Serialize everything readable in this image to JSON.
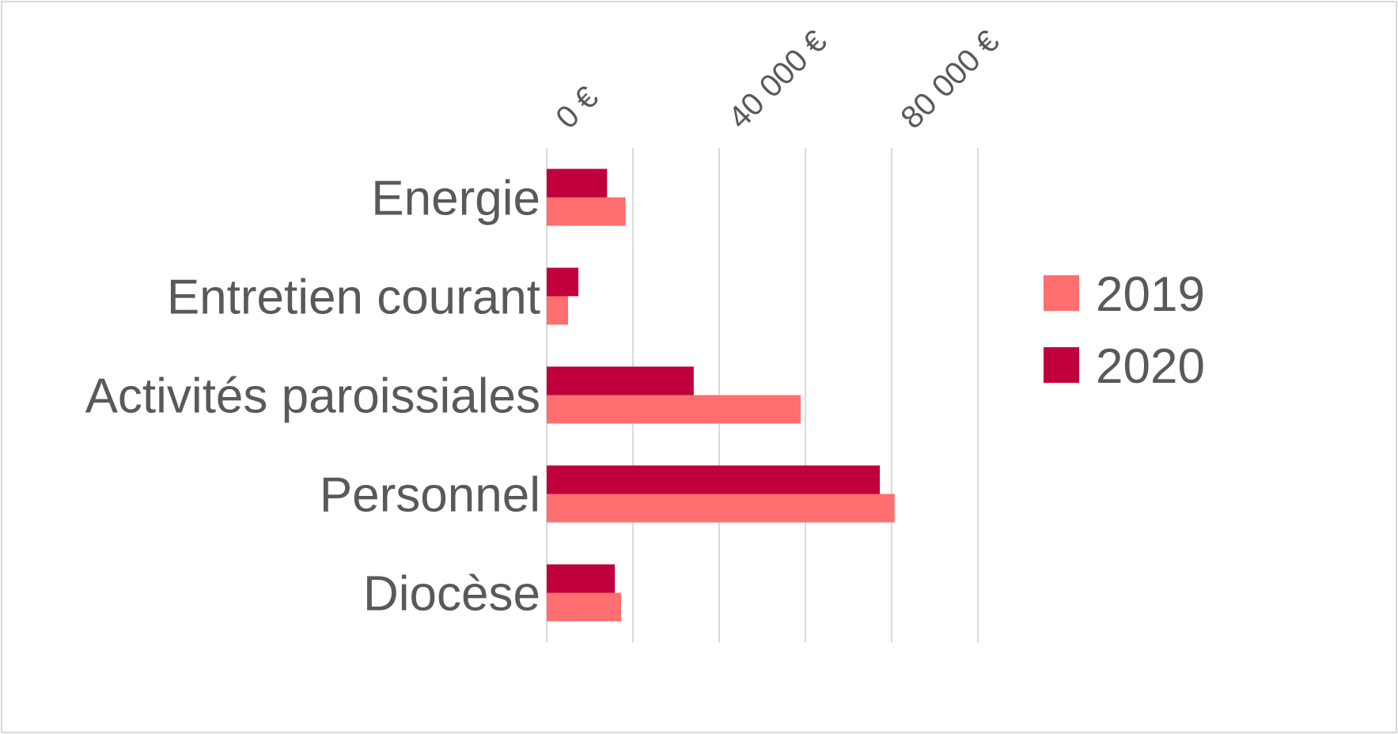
{
  "chart_data": {
    "type": "hbar",
    "categories": [
      "Energie",
      "Entretien courant",
      "Activités paroissiales",
      "Personnel",
      "Diocèse"
    ],
    "series": [
      {
        "name": "2019",
        "color": "#ff6f6f",
        "values": [
          18300,
          4950,
          58900,
          80700,
          17250
        ]
      },
      {
        "name": "2020",
        "color": "#c0003c",
        "values": [
          14000,
          7350,
          34100,
          77250,
          15800
        ]
      }
    ],
    "xlim": [
      0,
      100000
    ],
    "xticks": [
      {
        "value": 0,
        "label": "0 €"
      },
      {
        "value": 20000,
        "label": null
      },
      {
        "value": 40000,
        "label": "40 000 €"
      },
      {
        "value": 60000,
        "label": null
      },
      {
        "value": 80000,
        "label": "80 000 €"
      },
      {
        "value": 100000,
        "label": null
      }
    ],
    "grid": true,
    "legend": "right"
  }
}
